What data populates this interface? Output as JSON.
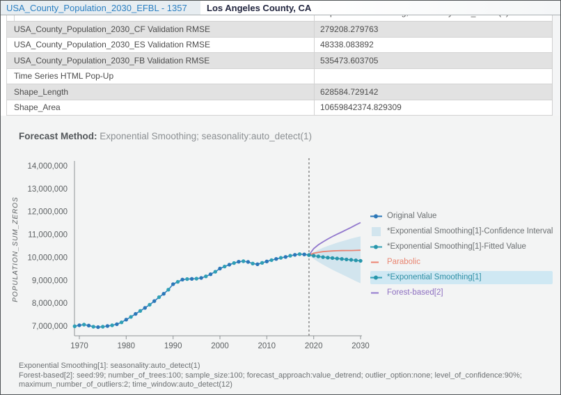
{
  "header": {
    "tab_title": "USA_County_Population_2030_EFBL - 1357",
    "page_title": "Los Angeles County, CA"
  },
  "table": {
    "clipped_row_value": "Exponential Smoothing; seasonality:auto_detect(1)",
    "rows": [
      {
        "label": "USA_County_Population_2030_CF Validation RMSE",
        "value": "279208.279763",
        "shaded": true
      },
      {
        "label": "USA_County_Population_2030_ES Validation RMSE",
        "value": "48338.083892",
        "shaded": false
      },
      {
        "label": "USA_County_Population_2030_FB Validation RMSE",
        "value": "535473.603705",
        "shaded": true
      },
      {
        "label": "Time Series HTML Pop-Up",
        "value": "",
        "shaded": false
      },
      {
        "label": "Shape_Length",
        "value": "628584.729142",
        "shaded": true
      },
      {
        "label": "Shape_Area",
        "value": "10659842374.829309",
        "shaded": false
      }
    ]
  },
  "forecast_method": {
    "label": "Forecast Method:",
    "value": " Exponential Smoothing; seasonality:auto_detect(1)"
  },
  "chart_data": {
    "type": "line",
    "title": "Forecast Method: Exponential Smoothing; seasonality:auto_detect(1)",
    "xlabel": "",
    "ylabel": "POPULATION_SUM_ZEROS",
    "xlim": [
      1968,
      2031
    ],
    "ylim": [
      7000000,
      14000000
    ],
    "x_ticks": [
      1970,
      1980,
      1990,
      2000,
      2010,
      2020,
      2030
    ],
    "y_ticks": [
      7000000,
      8000000,
      9000000,
      10000000,
      11000000,
      12000000,
      13000000,
      14000000
    ],
    "grid": false,
    "legend_position": "right",
    "forecast_start": 2019,
    "series": [
      {
        "name": "Original Value",
        "role": "original",
        "x": [
          1969,
          1970,
          1971,
          1972,
          1973,
          1974,
          1975,
          1976,
          1977,
          1978,
          1979,
          1980,
          1981,
          1982,
          1983,
          1984,
          1985,
          1986,
          1987,
          1988,
          1989,
          1990,
          1991,
          1992,
          1993,
          1994,
          1995,
          1996,
          1997,
          1998,
          1999,
          2000,
          2001,
          2002,
          2003,
          2004,
          2005,
          2006,
          2007,
          2008,
          2009,
          2010,
          2011,
          2012,
          2013,
          2014,
          2015,
          2016,
          2017,
          2018,
          2019
        ],
        "y": [
          6990000,
          7032000,
          7060000,
          7020000,
          6970000,
          6950000,
          6970000,
          7000000,
          7030000,
          7080000,
          7160000,
          7280000,
          7400000,
          7530000,
          7660000,
          7790000,
          7930000,
          8090000,
          8260000,
          8410000,
          8590000,
          8830000,
          8930000,
          9030000,
          9050000,
          9060000,
          9070000,
          9100000,
          9170000,
          9260000,
          9370000,
          9510000,
          9600000,
          9680000,
          9750000,
          9810000,
          9830000,
          9800000,
          9730000,
          9700000,
          9760000,
          9820000,
          9880000,
          9930000,
          9980000,
          10020000,
          10070000,
          10110000,
          10140000,
          10130000,
          10100000
        ]
      },
      {
        "name": "*Exponential Smoothing[1]-Fitted Value",
        "role": "fitted",
        "x": [
          1969,
          1970,
          1971,
          1972,
          1973,
          1974,
          1975,
          1976,
          1977,
          1978,
          1979,
          1980,
          1981,
          1982,
          1983,
          1984,
          1985,
          1986,
          1987,
          1988,
          1989,
          1990,
          1991,
          1992,
          1993,
          1994,
          1995,
          1996,
          1997,
          1998,
          1999,
          2000,
          2001,
          2002,
          2003,
          2004,
          2005,
          2006,
          2007,
          2008,
          2009,
          2010,
          2011,
          2012,
          2013,
          2014,
          2015,
          2016,
          2017,
          2018,
          2019
        ],
        "y": [
          6990000,
          7032000,
          7060000,
          7020000,
          6970000,
          6950000,
          6970000,
          7000000,
          7030000,
          7080000,
          7160000,
          7280000,
          7400000,
          7530000,
          7660000,
          7790000,
          7930000,
          8090000,
          8260000,
          8410000,
          8590000,
          8830000,
          8930000,
          9030000,
          9050000,
          9060000,
          9070000,
          9100000,
          9170000,
          9260000,
          9370000,
          9510000,
          9600000,
          9680000,
          9750000,
          9810000,
          9830000,
          9800000,
          9730000,
          9700000,
          9760000,
          9820000,
          9880000,
          9930000,
          9980000,
          10020000,
          10070000,
          10110000,
          10140000,
          10130000,
          10100000
        ]
      },
      {
        "name": "*Exponential Smoothing[1]",
        "role": "es_forecast",
        "x": [
          2019,
          2020,
          2021,
          2022,
          2023,
          2024,
          2025,
          2026,
          2027,
          2028,
          2029,
          2030
        ],
        "y": [
          10100000,
          10070000,
          10040000,
          10010000,
          9990000,
          9970000,
          9950000,
          9930000,
          9910000,
          9890000,
          9870000,
          9850000
        ]
      },
      {
        "name": "Parabolic",
        "role": "parabolic",
        "x": [
          2019,
          2020,
          2021,
          2022,
          2023,
          2024,
          2025,
          2026,
          2027,
          2028,
          2029,
          2030
        ],
        "y": [
          10100000,
          10180000,
          10220000,
          10250000,
          10270000,
          10280000,
          10290000,
          10295000,
          10300000,
          10300000,
          10305000,
          10310000
        ]
      },
      {
        "name": "Forest-based[2]",
        "role": "forest",
        "x": [
          2019,
          2020,
          2021,
          2022,
          2023,
          2024,
          2025,
          2026,
          2027,
          2028,
          2029,
          2030
        ],
        "y": [
          10100000,
          10380000,
          10550000,
          10680000,
          10800000,
          10910000,
          11010000,
          11110000,
          11210000,
          11310000,
          11420000,
          11520000
        ]
      },
      {
        "name": "*Exponential Smoothing[1]-Confidence Interval",
        "role": "ci",
        "x": [
          2019,
          2020,
          2021,
          2022,
          2023,
          2024,
          2025,
          2026,
          2027,
          2028,
          2029,
          2030
        ],
        "upper": [
          10100000,
          10230000,
          10330000,
          10420000,
          10500000,
          10570000,
          10640000,
          10700000,
          10760000,
          10820000,
          10870000,
          10920000
        ],
        "lower": [
          10100000,
          9930000,
          9800000,
          9680000,
          9570000,
          9460000,
          9360000,
          9260000,
          9160000,
          9060000,
          8960000,
          8870000
        ]
      }
    ]
  },
  "legend": {
    "items": [
      {
        "label": "Original Value"
      },
      {
        "label": "*Exponential Smoothing[1]-Confidence Interval"
      },
      {
        "label": "*Exponential Smoothing[1]-Fitted Value"
      },
      {
        "label": "Parabolic"
      },
      {
        "label": "*Exponential Smoothing[1]"
      },
      {
        "label": "Forest-based[2]"
      }
    ]
  },
  "footnotes": {
    "line1": "Exponential Smoothing[1]: seasonality:auto_detect(1)",
    "line2": "Forest-based[2]: seed:99; number_of_trees:100; sample_size:100; forecast_approach:value_detrend; outlier_option:none; level_of_confidence:90%; maximum_number_of_outliers:2; time_window:auto_detect(12)"
  },
  "colors": {
    "accent_blue": "#2a7fc2",
    "original_blue": "#2b77b8",
    "history_line": "#2e7fbe",
    "teal": "#2f9fb5",
    "forecast_dot": "#2796ab",
    "salmon": "#ec8270",
    "purple": "#9177cd",
    "ci_fill": "#d2e5ee",
    "highlight_bg": "#cfe8f3",
    "dashed_line": "#8f8f8f"
  }
}
